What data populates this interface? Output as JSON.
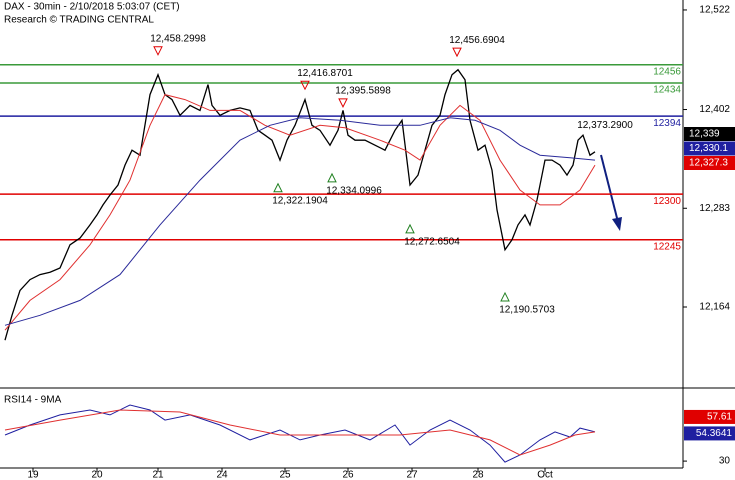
{
  "chart_data": [
    {
      "type": "line",
      "title": "DAX - 30min - 2/10/2018 5:03:07 (CET)",
      "subtitle": "Research © TRADING CENTRAL",
      "xlim": [
        0,
        683
      ],
      "ylim": [
        12070,
        12534
      ],
      "xticks": [
        {
          "value": 33,
          "label": "19"
        },
        {
          "value": 97,
          "label": "20"
        },
        {
          "value": 158,
          "label": "21"
        },
        {
          "value": 222,
          "label": "24"
        },
        {
          "value": 285,
          "label": "25"
        },
        {
          "value": 348,
          "label": "26"
        },
        {
          "value": 412,
          "label": "27"
        },
        {
          "value": 478,
          "label": "28"
        },
        {
          "value": 545,
          "label": "Oct"
        }
      ],
      "yticks": [
        {
          "value": 12522,
          "label": "12,522"
        },
        {
          "value": 12402,
          "label": "12,402"
        },
        {
          "value": 12283,
          "label": "12,283"
        },
        {
          "value": 12164,
          "label": "12,164"
        }
      ],
      "levels": [
        {
          "value": 12456,
          "color": "#3a9a3a"
        },
        {
          "value": 12434,
          "color": "#3a9a3a"
        },
        {
          "value": 12394,
          "color": "#1f1fa0"
        },
        {
          "value": 12300,
          "color": "#e00000"
        },
        {
          "value": 12245,
          "color": "#e00000"
        }
      ],
      "highs": [
        {
          "x": 158,
          "value": 12458.2998,
          "label": "12,458.2998"
        },
        {
          "x": 305,
          "value": 12416.8701,
          "label": "12,416.8701"
        },
        {
          "x": 343,
          "value": 12395.5898,
          "label": "12,395.5898"
        },
        {
          "x": 457,
          "value": 12456.6904,
          "label": "12,456.6904"
        }
      ],
      "lows": [
        {
          "x": 278,
          "value": 12322.1904,
          "label": "12,322.1904"
        },
        {
          "x": 332,
          "value": 12334.0996,
          "label": "12,334.0996"
        },
        {
          "x": 410,
          "value": 12272.6504,
          "label": "12,272.6504"
        },
        {
          "x": 505,
          "value": 12190.5703,
          "label": "12,190.5703"
        }
      ],
      "notes": [
        {
          "x": 605,
          "value": 12373.29,
          "label": "12,373.2900"
        }
      ],
      "price_labels": [
        {
          "value": 12339,
          "label": "12,339",
          "color": "#000000"
        },
        {
          "value": 12330.1,
          "label": "12,330.1",
          "color": "#1f1fa0"
        },
        {
          "value": 12327.3,
          "label": "12,327.3",
          "color": "#e00000"
        }
      ],
      "series": [
        {
          "color": "#000000",
          "x": [
            5,
            12,
            20,
            30,
            40,
            50,
            60,
            70,
            80,
            90,
            97,
            103,
            110,
            118,
            125,
            132,
            140,
            150,
            158,
            165,
            172,
            180,
            190,
            200,
            208,
            212,
            220,
            230,
            240,
            250,
            258,
            265,
            272,
            280,
            287,
            295,
            305,
            312,
            320,
            330,
            338,
            343,
            348,
            355,
            365,
            375,
            385,
            395,
            402,
            410,
            418,
            425,
            432,
            440,
            445,
            452,
            458,
            465,
            470,
            478,
            485,
            492,
            497,
            505,
            512,
            518,
            525,
            530,
            537,
            545,
            552,
            560,
            567,
            573,
            578,
            583,
            590,
            595
          ],
          "values": [
            12124,
            12154,
            12184,
            12197,
            12203,
            12206,
            12211,
            12239,
            12247,
            12263,
            12275,
            12287,
            12299,
            12311,
            12335,
            12353,
            12347,
            12420,
            12444,
            12420,
            12414,
            12395,
            12407,
            12401,
            12432,
            12407,
            12395,
            12401,
            12404,
            12401,
            12377,
            12371,
            12365,
            12341,
            12365,
            12383,
            12414,
            12383,
            12377,
            12359,
            12377,
            12401,
            12371,
            12365,
            12365,
            12359,
            12353,
            12377,
            12389,
            12311,
            12323,
            12353,
            12383,
            12395,
            12420,
            12444,
            12450,
            12438,
            12389,
            12353,
            12359,
            12329,
            12281,
            12233,
            12245,
            12263,
            12275,
            12263,
            12293,
            12341,
            12341,
            12335,
            12323,
            12335,
            12365,
            12371,
            12347,
            12351
          ]
        },
        {
          "color": "#e03030",
          "x": [
            5,
            30,
            60,
            90,
            110,
            130,
            150,
            165,
            185,
            210,
            240,
            265,
            290,
            320,
            345,
            380,
            405,
            420,
            440,
            460,
            480,
            500,
            520,
            540,
            560,
            580,
            595
          ],
          "values": [
            12136,
            12172,
            12197,
            12239,
            12275,
            12317,
            12383,
            12420,
            12414,
            12401,
            12401,
            12383,
            12371,
            12383,
            12380,
            12365,
            12353,
            12341,
            12383,
            12407,
            12389,
            12341,
            12305,
            12287,
            12287,
            12305,
            12335
          ]
        },
        {
          "color": "#2a2a9a",
          "x": [
            5,
            40,
            80,
            120,
            160,
            200,
            240,
            270,
            300,
            340,
            380,
            420,
            450,
            475,
            500,
            520,
            540,
            570,
            595
          ],
          "values": [
            12142,
            12154,
            12172,
            12203,
            12263,
            12317,
            12365,
            12383,
            12392,
            12389,
            12383,
            12383,
            12392,
            12389,
            12377,
            12359,
            12347,
            12344,
            12341
          ]
        }
      ]
    },
    {
      "type": "line",
      "title": "RSI14 - 9MA",
      "xlim": [
        0,
        683
      ],
      "ylim": [
        25,
        80
      ],
      "yticks": [
        30
      ],
      "last_labels": [
        {
          "value": 57.61,
          "label": "57.61",
          "color": "#e00000"
        },
        {
          "value": 54.3641,
          "label": "54.3641",
          "color": "#1f1fa0"
        }
      ],
      "series": [
        {
          "color": "#1f1fa0",
          "x": [
            5,
            30,
            60,
            90,
            110,
            130,
            150,
            165,
            190,
            220,
            250,
            280,
            300,
            320,
            345,
            370,
            395,
            410,
            430,
            450,
            470,
            490,
            505,
            520,
            540,
            555,
            570,
            580,
            595
          ],
          "values": [
            48.9,
            56.1,
            63.4,
            67.0,
            63.4,
            70.6,
            67.0,
            59.7,
            63.4,
            56.1,
            45.3,
            52.5,
            45.3,
            48.9,
            52.5,
            45.3,
            56.1,
            41.6,
            52.5,
            59.7,
            52.5,
            41.6,
            29.3,
            34.4,
            45.3,
            51.1,
            47.4,
            53.9,
            51.1
          ]
        },
        {
          "color": "#e03030",
          "x": [
            5,
            60,
            120,
            180,
            230,
            280,
            340,
            400,
            450,
            490,
            520,
            550,
            575,
            595
          ],
          "values": [
            52.5,
            59.7,
            67.0,
            65.5,
            56.1,
            48.9,
            48.9,
            48.9,
            52.5,
            45.3,
            34.4,
            41.6,
            48.9,
            51.1
          ]
        }
      ]
    }
  ]
}
